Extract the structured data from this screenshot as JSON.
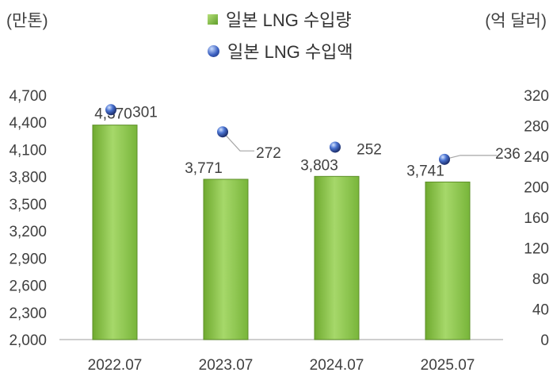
{
  "chart_data": {
    "type": "bar+scatter",
    "categories": [
      "2022.07",
      "2023.07",
      "2024.07",
      "2025.07"
    ],
    "series": [
      {
        "name": "일본 LNG 수입량",
        "kind": "bar",
        "axis": "left",
        "values": [
          4370,
          3771,
          3803,
          3741
        ],
        "labels": [
          "4,370",
          "3,771",
          "3,803",
          "3,741"
        ],
        "color": "#8dc63f"
      },
      {
        "name": "일본 LNG 수입액",
        "kind": "scatter",
        "axis": "right",
        "values": [
          301,
          272,
          252,
          236
        ],
        "labels": [
          "301",
          "272",
          "252",
          "236"
        ],
        "color": "#3a5fc0"
      }
    ],
    "left_axis": {
      "unit": "(만톤)",
      "ylim": [
        2000,
        4700
      ],
      "ticks": [
        "2,000",
        "2,300",
        "2,600",
        "2,900",
        "3,200",
        "3,500",
        "3,800",
        "4,100",
        "4,400",
        "4,700"
      ],
      "tick_values": [
        2000,
        2300,
        2600,
        2900,
        3200,
        3500,
        3800,
        4100,
        4400,
        4700
      ]
    },
    "right_axis": {
      "unit": "(억 달러)",
      "ylim": [
        0,
        320
      ],
      "ticks": [
        "0",
        "40",
        "80",
        "120",
        "160",
        "200",
        "240",
        "280",
        "320"
      ],
      "tick_values": [
        0,
        40,
        80,
        120,
        160,
        200,
        240,
        280,
        320
      ]
    },
    "legend": {
      "position": "top"
    },
    "grid": false
  }
}
